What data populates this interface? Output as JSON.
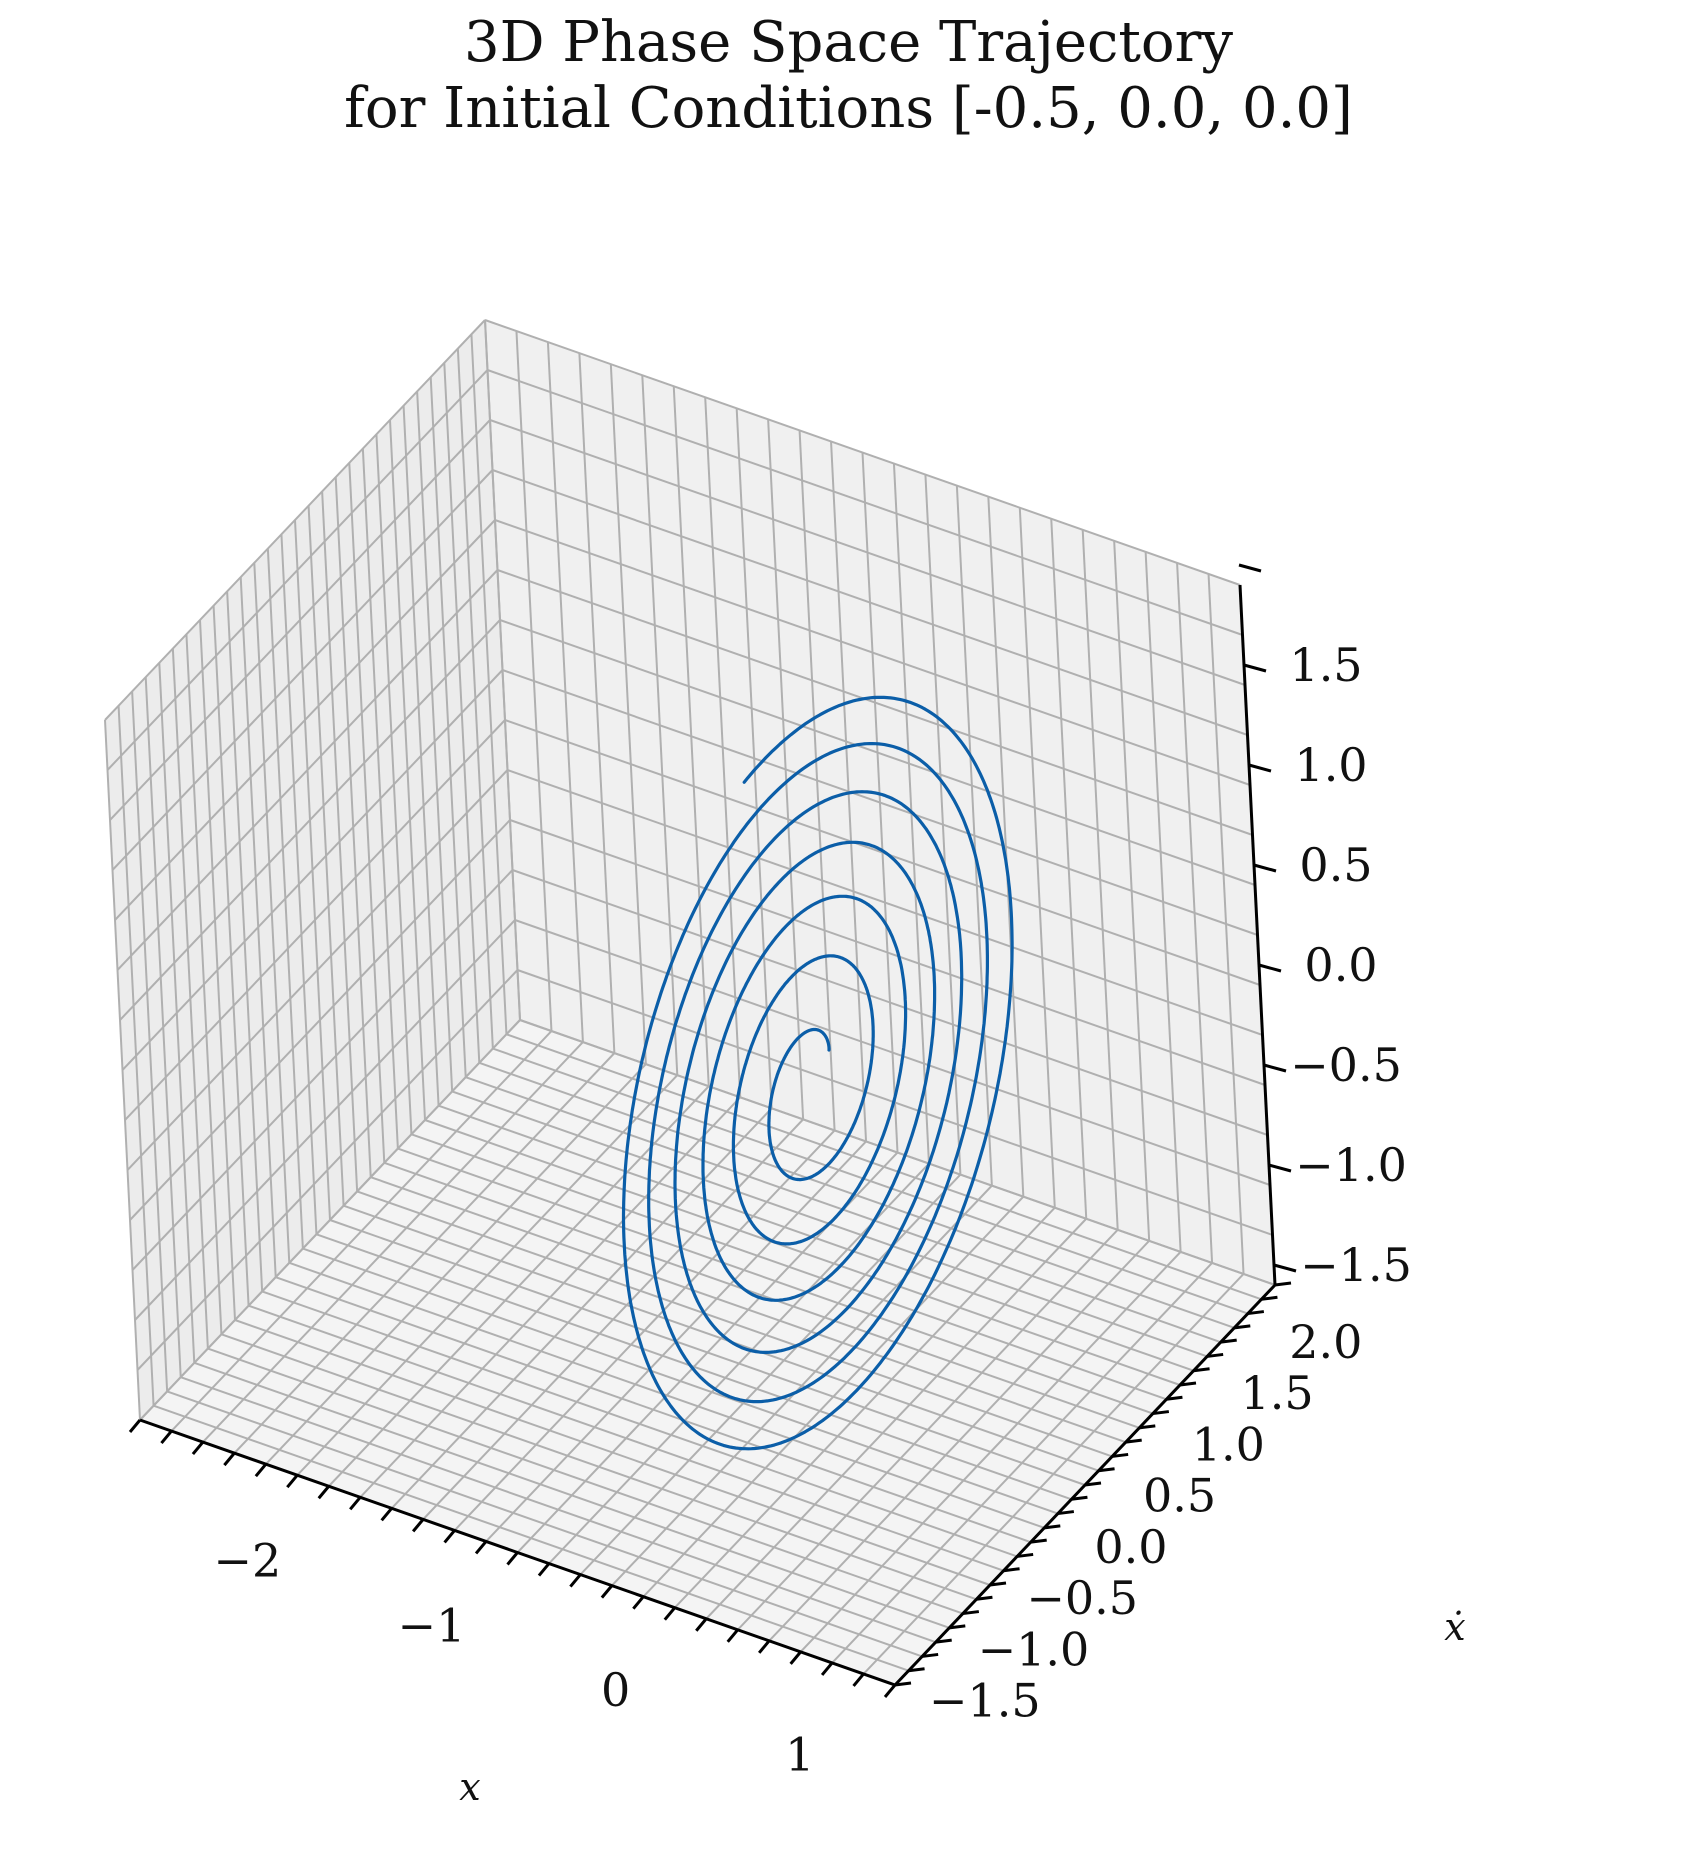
{
  "chart_data": {
    "type": "line",
    "projection": "3d",
    "title": "3D Phase Space Trajectory",
    "subtitle": "for Initial Conditions [-0.5, 0.0, 0.0]",
    "xlabel": "x",
    "ylabel": "ẋ",
    "zlabel": "",
    "xlim": [
      -2.8,
      1.3
    ],
    "ylim": [
      -1.6,
      2.3
    ],
    "zlim": [
      -1.6,
      1.9
    ],
    "x_ticks": [
      "−2",
      "−1",
      "0",
      "1"
    ],
    "y_ticks": [
      "−1.5",
      "−1.0",
      "−0.5",
      "0.0",
      "0.5",
      "1.0",
      "1.5",
      "2.0"
    ],
    "z_ticks": [
      "−1.5",
      "−1.0",
      "−0.5",
      "0.0",
      "0.5",
      "1.0",
      "1.5"
    ],
    "grid": true,
    "series": [
      {
        "color": "#0b5ea8",
        "trajectory": "expanding spiral starting near (-0.3, 0.1, -0.8) with radius growing to about 2.1 and tilted plane"
      }
    ]
  },
  "colors": {
    "line": "#0b5ea8",
    "pane": "#f2f2f2",
    "grid": "#b0b0b0",
    "axis": "#000000"
  }
}
